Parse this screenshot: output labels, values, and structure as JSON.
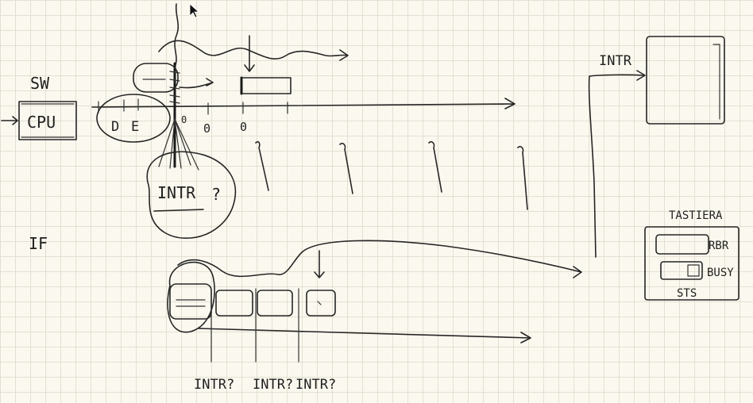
{
  "labels": {
    "sw": "SW",
    "cpu": "CPU",
    "d_label": "D",
    "e_label": "E",
    "zero_a": "0",
    "zero_b": "0",
    "zero_c": "0",
    "intr_bubble": "INTR",
    "q_mark": "?",
    "if_label": "IF",
    "intr_device": "INTR",
    "tastiera": "TASTIERA",
    "rbr": "RBR",
    "busy": "BUSY",
    "sts": "STS",
    "intr_q1": "INTR?",
    "intr_q2": "INTR?",
    "intr_q3": "INTR?"
  },
  "colors": {
    "paper": "#fbf9ef",
    "grid": "#e3e0d2",
    "ink": "#262626"
  }
}
